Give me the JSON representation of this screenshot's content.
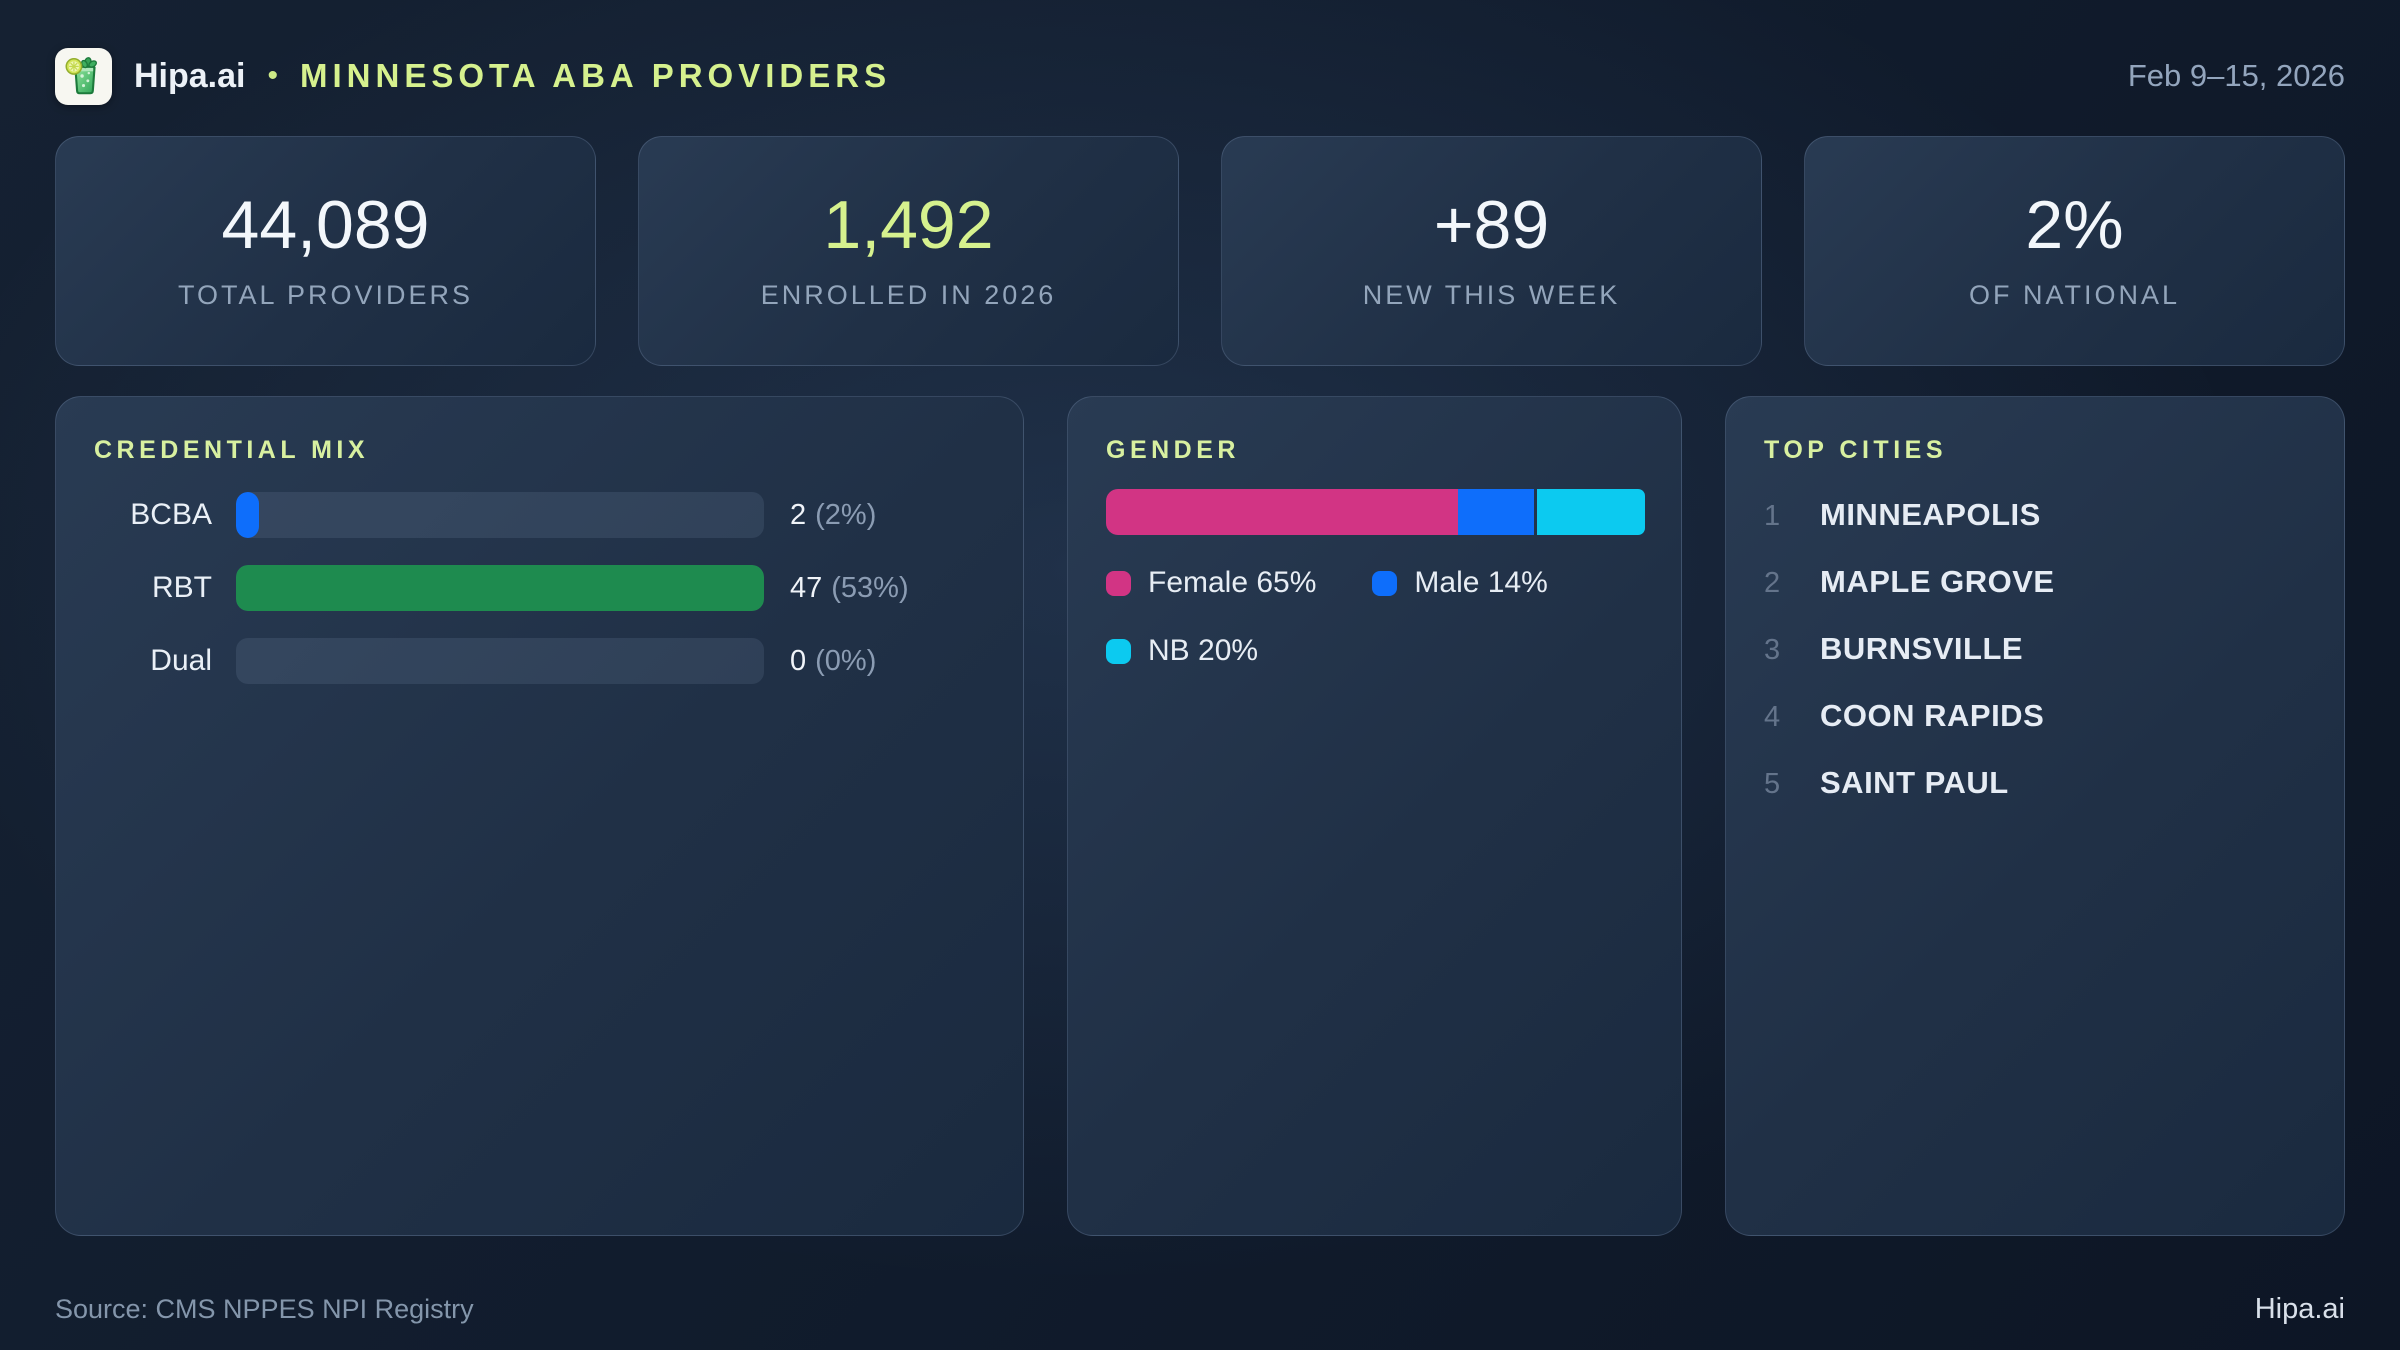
{
  "colors": {
    "accent_green": "#d6f18e",
    "bar_blue": "#0e6efb",
    "bar_green": "#1e8b4f",
    "pink_female": "#d23484",
    "blue_male": "#0e6efb",
    "cyan_nb": "#0ccaf0"
  },
  "header": {
    "logo_icon": "mojito-drink-icon",
    "brand": "Hipa.ai",
    "separator": "•",
    "title": "MINNESOTA ABA PROVIDERS",
    "date_range": "Feb 9–15, 2026"
  },
  "stats": [
    {
      "value": "44,089",
      "label": "TOTAL PROVIDERS"
    },
    {
      "value": "1,492",
      "label": "ENROLLED IN 2026"
    },
    {
      "value": "+89",
      "label": "NEW THIS WEEK"
    },
    {
      "value": "2%",
      "label": "OF NATIONAL"
    }
  ],
  "credential_mix": {
    "title": "CREDENTIAL MIX",
    "rows": [
      {
        "label": "BCBA",
        "count": "2",
        "pct": "(2%)",
        "fill_percent": 4.3,
        "color": "#0e6efb"
      },
      {
        "label": "RBT",
        "count": "47",
        "pct": "(53%)",
        "fill_percent": 100,
        "color": "#1e8b4f"
      },
      {
        "label": "Dual",
        "count": "0",
        "pct": "(0%)",
        "fill_percent": 0,
        "color": "transparent"
      }
    ]
  },
  "gender": {
    "title": "GENDER",
    "segments": [
      {
        "label": "Female",
        "percent": 65,
        "color": "#d23484",
        "legend": "Female 65%"
      },
      {
        "label": "Male",
        "percent": 14,
        "color": "#0e6efb",
        "legend": "Male 14%"
      },
      {
        "label": "NB",
        "percent": 20,
        "color": "#0ccaf0",
        "legend": "NB 20%"
      }
    ]
  },
  "top_cities": {
    "title": "TOP CITIES",
    "items": [
      {
        "rank": "1",
        "name": "MINNEAPOLIS"
      },
      {
        "rank": "2",
        "name": "MAPLE GROVE"
      },
      {
        "rank": "3",
        "name": "BURNSVILLE"
      },
      {
        "rank": "4",
        "name": "COON RAPIDS"
      },
      {
        "rank": "5",
        "name": "SAINT PAUL"
      }
    ]
  },
  "footer": {
    "source": "Source: CMS NPPES NPI Registry",
    "brand": "Hipa.ai"
  },
  "chart_data": [
    {
      "type": "bar",
      "orientation": "horizontal",
      "title": "CREDENTIAL MIX",
      "categories": [
        "BCBA",
        "RBT",
        "Dual"
      ],
      "values": [
        2,
        47,
        0
      ],
      "percent_labels": [
        "2%",
        "53%",
        "0%"
      ],
      "value_labels": [
        "2 (2%)",
        "47 (53%)",
        "0 (0%)"
      ],
      "xlabel": "",
      "ylabel": "",
      "note": "bar widths normalized to max value (RBT = 47 = full width)",
      "grid": false,
      "legend_position": "none"
    },
    {
      "type": "bar",
      "subtype": "stacked-100pct",
      "title": "GENDER",
      "categories": [
        "Female",
        "Male",
        "NB"
      ],
      "values": [
        65,
        14,
        20
      ],
      "unit": "%",
      "colors": [
        "#d23484",
        "#0e6efb",
        "#0ccaf0"
      ],
      "legend_entries": [
        "Female 65%",
        "Male 14%",
        "NB 20%"
      ],
      "legend_position": "below-bar",
      "grid": false
    }
  ]
}
